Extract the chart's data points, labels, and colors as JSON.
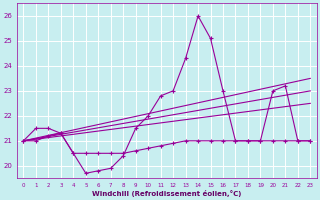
{
  "background_color": "#c8eef0",
  "grid_color": "#ffffff",
  "line_color": "#990099",
  "xlabel": "Windchill (Refroidissement éolien,°C)",
  "xlabel_color": "#660066",
  "xlim": [
    -0.5,
    23.5
  ],
  "ylim": [
    19.5,
    26.5
  ],
  "yticks": [
    20,
    21,
    22,
    23,
    24,
    25,
    26
  ],
  "xticks": [
    0,
    1,
    2,
    3,
    4,
    5,
    6,
    7,
    8,
    9,
    10,
    11,
    12,
    13,
    14,
    15,
    16,
    17,
    18,
    19,
    20,
    21,
    22,
    23
  ],
  "main_x": [
    0,
    1,
    2,
    3,
    4,
    5,
    6,
    7,
    8,
    9,
    10,
    11,
    12,
    13,
    14,
    15,
    16,
    17,
    18,
    19,
    20,
    21,
    22,
    23
  ],
  "main_y": [
    21.0,
    21.5,
    21.5,
    21.3,
    20.5,
    19.7,
    19.8,
    19.9,
    20.4,
    21.5,
    22.0,
    22.8,
    23.0,
    24.3,
    26.0,
    25.1,
    23.0,
    21.0,
    21.0,
    21.0,
    23.0,
    23.2,
    21.0,
    21.0
  ],
  "flat_x": [
    0,
    1,
    2,
    3,
    4,
    5,
    6,
    7,
    8,
    9,
    10,
    11,
    12,
    13,
    14,
    15,
    16,
    17,
    18,
    19,
    20,
    21,
    22,
    23
  ],
  "flat_y": [
    21.0,
    21.0,
    21.2,
    21.3,
    20.5,
    20.5,
    20.5,
    20.5,
    20.5,
    20.6,
    20.7,
    20.8,
    20.9,
    21.0,
    21.0,
    21.0,
    21.0,
    21.0,
    21.0,
    21.0,
    21.0,
    21.0,
    21.0,
    21.0
  ],
  "trend1_x": [
    0,
    23
  ],
  "trend1_y": [
    21.0,
    22.5
  ],
  "trend2_x": [
    0,
    23
  ],
  "trend2_y": [
    21.0,
    23.0
  ],
  "trend3_x": [
    0,
    23
  ],
  "trend3_y": [
    21.0,
    23.5
  ]
}
